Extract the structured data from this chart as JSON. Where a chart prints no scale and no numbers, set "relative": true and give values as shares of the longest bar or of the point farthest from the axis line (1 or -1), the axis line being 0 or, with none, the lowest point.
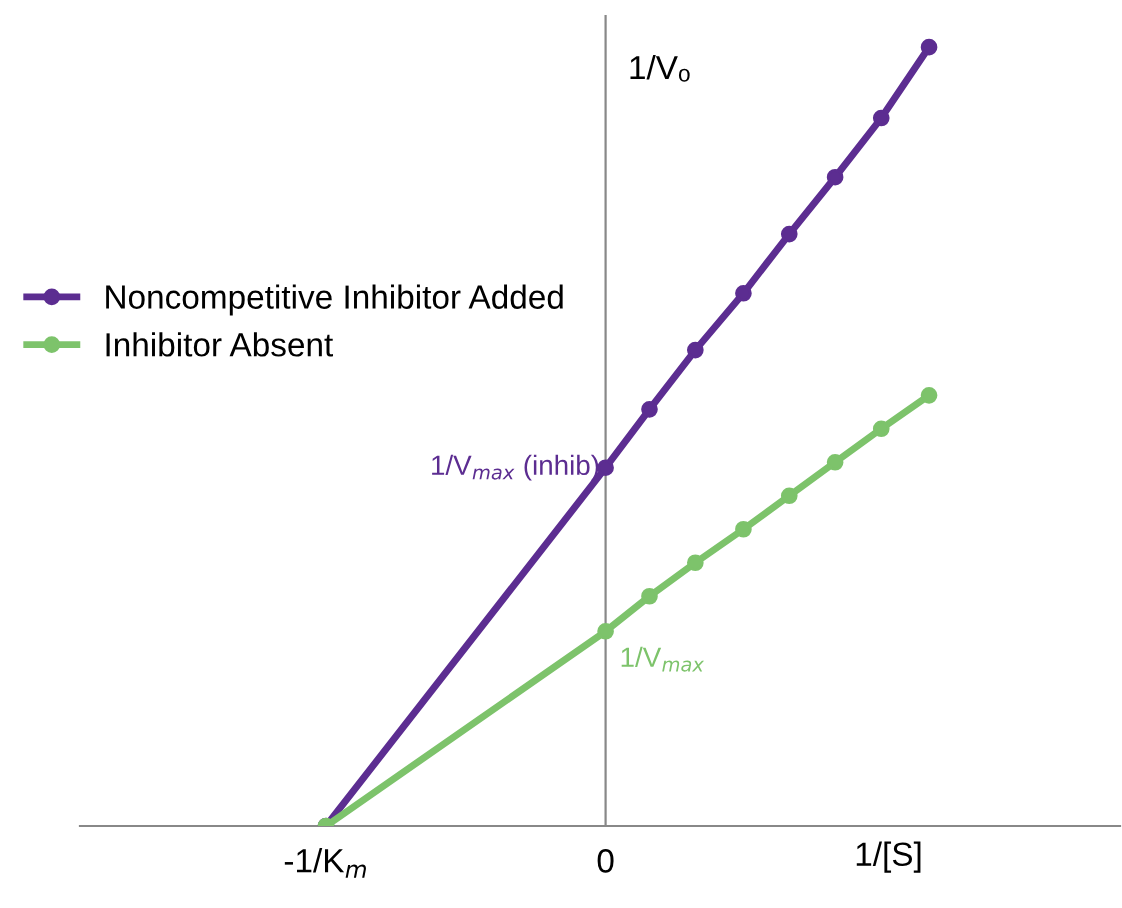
{
  "chart_data": {
    "type": "line",
    "relative": true,
    "xlabel": "1/[S]",
    "ylabel": "1/Vₒ",
    "x": [
      -1,
      0,
      0.157,
      0.321,
      0.493,
      0.657,
      0.821,
      0.986,
      1.157
    ],
    "xlim": [
      -1.88,
      1.84
    ],
    "xticks": [
      {
        "value": -1,
        "label": "-1/K$_{m}$"
      },
      0
    ],
    "series": [
      {
        "name": "Noncompetitive Inhibitor Added",
        "color": "#5c2d91",
        "values": [
          0,
          0.46,
          0.535,
          0.611,
          0.684,
          0.76,
          0.833,
          0.909,
          1
        ]
      },
      {
        "name": "Inhibitor Absent",
        "color": "#7dc36b",
        "values": [
          0,
          0.25,
          0.295,
          0.338,
          0.381,
          0.424,
          0.467,
          0.51,
          0.553
        ]
      }
    ],
    "annotations": [
      {
        "text": "1/V$_{max}$ (inhib)",
        "x": 0,
        "y": 0.46
      },
      {
        "text": "1/V$_{max}$",
        "x": 0,
        "y": 0.25
      }
    ],
    "marker": "circle",
    "legend": "left"
  }
}
